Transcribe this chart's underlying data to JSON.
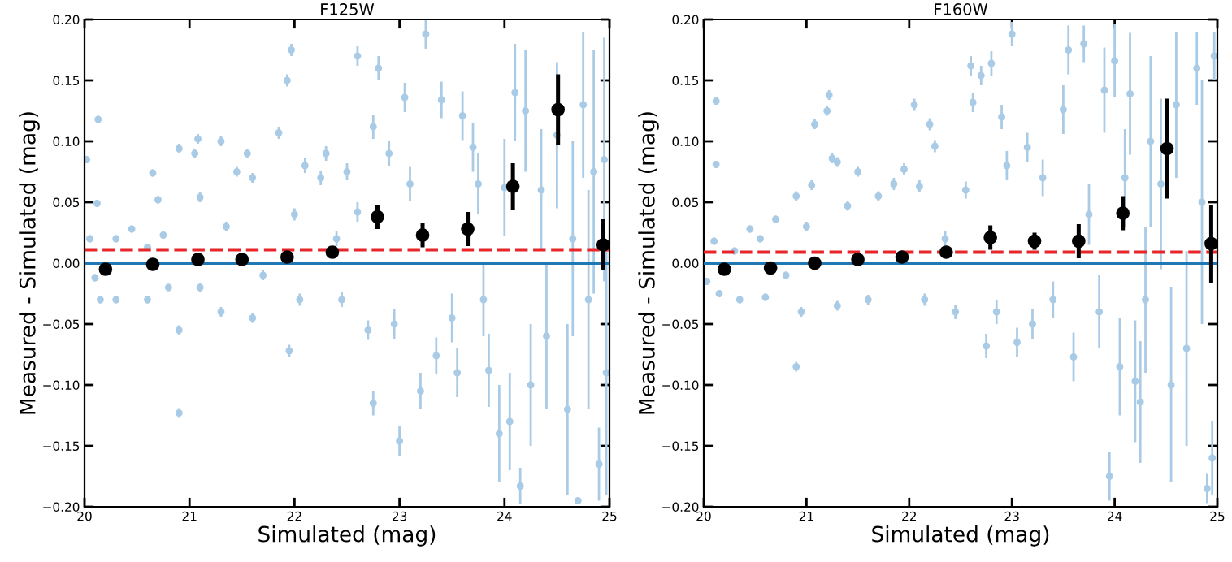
{
  "chart_data": [
    {
      "type": "scatter",
      "title": "F125W",
      "xlabel": "Simulated (mag)",
      "ylabel": "Measured - Simulated (mag)",
      "xlim": [
        20,
        25
      ],
      "xticks": [
        20,
        21,
        22,
        23,
        24,
        25
      ],
      "ylim": [
        -0.2,
        0.2
      ],
      "yticks": [
        {
          "value": -0.2,
          "label": "−0.20"
        },
        {
          "value": -0.15,
          "label": "−0.15"
        },
        {
          "value": -0.1,
          "label": "−0.10"
        },
        {
          "value": -0.05,
          "label": "−0.05"
        },
        {
          "value": 0,
          "label": "0.00"
        },
        {
          "value": 0.05,
          "label": "0.05"
        },
        {
          "value": 0.1,
          "label": "0.10"
        },
        {
          "value": 0.15,
          "label": "0.15"
        },
        {
          "value": 0.2,
          "label": "0.20"
        }
      ],
      "grid": false,
      "marker": "circle",
      "ref_lines": [
        {
          "axis": "y",
          "value": 0,
          "color": "#1f77b4",
          "line_style": "solid"
        },
        {
          "axis": "y",
          "value": 0.011,
          "color": "#e8262a",
          "line_style": "dashed"
        }
      ],
      "series": [
        {
          "color": "#a9cbe6",
          "x": [
            20.02,
            20.05,
            20.13,
            20.12,
            20.1,
            20.15,
            20.3,
            20.3,
            20.45,
            20.6,
            20.6,
            20.65,
            20.7,
            20.75,
            20.8,
            20.9,
            20.9,
            20.9,
            21.05,
            21.08,
            21.1,
            21.1,
            21.3,
            21.3,
            21.35,
            21.45,
            21.55,
            21.6,
            21.6,
            21.7,
            21.85,
            21.93,
            21.97,
            21.95,
            22.0,
            22.05,
            22.1,
            22.25,
            22.3,
            22.4,
            22.45,
            22.5,
            22.6,
            22.6,
            22.7,
            22.75,
            22.75,
            22.8,
            22.9,
            22.95,
            23.0,
            23.05,
            23.1,
            23.2,
            23.25,
            23.35,
            23.4,
            23.5,
            23.55,
            23.6,
            23.7,
            23.75,
            23.8,
            23.85,
            23.95,
            24.0,
            24.05,
            24.1,
            24.15,
            24.2,
            24.25,
            24.35,
            24.4,
            24.5,
            24.6,
            24.65,
            24.7,
            24.75,
            24.8,
            24.85,
            24.9,
            24.95,
            24.97
          ],
          "values": [
            0.085,
            0.02,
            0.118,
            0.049,
            -0.012,
            -0.03,
            0.02,
            -0.03,
            0.028,
            0.013,
            -0.03,
            0.074,
            0.052,
            0.023,
            -0.02,
            0.094,
            -0.055,
            -0.123,
            0.09,
            0.102,
            0.054,
            -0.02,
            0.1,
            -0.04,
            0.03,
            0.075,
            0.09,
            0.07,
            -0.045,
            -0.01,
            0.107,
            0.15,
            0.175,
            -0.072,
            0.04,
            -0.03,
            0.08,
            0.07,
            0.09,
            0.02,
            -0.03,
            0.075,
            0.17,
            0.042,
            -0.055,
            0.112,
            -0.115,
            0.16,
            0.09,
            -0.05,
            -0.146,
            0.136,
            0.065,
            -0.105,
            0.188,
            -0.076,
            0.134,
            -0.045,
            -0.09,
            0.121,
            0.095,
            0.065,
            -0.03,
            -0.088,
            -0.14,
            0.062,
            -0.13,
            0.14,
            -0.183,
            0.125,
            -0.1,
            0.06,
            -0.06,
            0.105,
            -0.12,
            0.02,
            -0.195,
            0.13,
            -0.03,
            0.075,
            -0.165,
            0.085,
            -0.09
          ],
          "errors": [
            0.003,
            0.003,
            0.003,
            0.003,
            0.003,
            0.003,
            0.003,
            0.003,
            0.003,
            0.003,
            0.003,
            0.003,
            0.003,
            0.003,
            0.003,
            0.004,
            0.004,
            0.004,
            0.004,
            0.004,
            0.004,
            0.004,
            0.004,
            0.004,
            0.004,
            0.004,
            0.004,
            0.004,
            0.004,
            0.004,
            0.005,
            0.005,
            0.005,
            0.005,
            0.005,
            0.005,
            0.006,
            0.006,
            0.006,
            0.006,
            0.006,
            0.007,
            0.008,
            0.008,
            0.008,
            0.01,
            0.01,
            0.01,
            0.01,
            0.012,
            0.012,
            0.012,
            0.014,
            0.015,
            0.012,
            0.015,
            0.015,
            0.02,
            0.02,
            0.02,
            0.02,
            0.025,
            0.03,
            0.03,
            0.04,
            0.04,
            0.04,
            0.04,
            0.015,
            0.05,
            0.05,
            0.05,
            0.06,
            0.06,
            0.07,
            0.08,
            null,
            0.06,
            0.09,
            0.1,
            0.03,
            0.1,
            0.1
          ]
        },
        {
          "color": "#000000",
          "x": [
            20.2,
            20.65,
            21.08,
            21.5,
            21.93,
            22.36,
            22.79,
            23.22,
            23.65,
            24.08,
            24.51,
            24.94
          ],
          "values": [
            -0.005,
            -0.001,
            0.003,
            0.003,
            0.005,
            0.009,
            0.038,
            0.023,
            0.028,
            0.063,
            0.126,
            0.015
          ],
          "errors": [
            0.002,
            0.002,
            0.002,
            0.002,
            0.003,
            0.003,
            0.01,
            0.01,
            0.014,
            0.019,
            0.029,
            0.021
          ]
        }
      ]
    },
    {
      "type": "scatter",
      "title": "F160W",
      "xlabel": "Simulated (mag)",
      "ylabel": "Measured - Simulated (mag)",
      "xlim": [
        20,
        25
      ],
      "xticks": [
        20,
        21,
        22,
        23,
        24,
        25
      ],
      "ylim": [
        -0.2,
        0.2
      ],
      "yticks": [
        {
          "value": -0.2,
          "label": "−0.20"
        },
        {
          "value": -0.15,
          "label": "−0.15"
        },
        {
          "value": -0.1,
          "label": "−0.10"
        },
        {
          "value": -0.05,
          "label": "−0.05"
        },
        {
          "value": 0,
          "label": "0.00"
        },
        {
          "value": 0.05,
          "label": "0.05"
        },
        {
          "value": 0.1,
          "label": "0.10"
        },
        {
          "value": 0.15,
          "label": "0.15"
        },
        {
          "value": 0.2,
          "label": "0.20"
        }
      ],
      "grid": false,
      "marker": "circle",
      "ref_lines": [
        {
          "axis": "y",
          "value": 0,
          "color": "#1f77b4",
          "line_style": "solid"
        },
        {
          "axis": "y",
          "value": 0.009,
          "color": "#e8262a",
          "line_style": "dashed"
        }
      ],
      "series": [
        {
          "color": "#a9cbe6",
          "x": [
            20.03,
            20.1,
            20.12,
            20.12,
            20.15,
            20.3,
            20.35,
            20.45,
            20.55,
            20.6,
            20.7,
            20.8,
            20.9,
            20.9,
            20.95,
            21.0,
            21.05,
            21.08,
            21.2,
            21.22,
            21.25,
            21.3,
            21.3,
            21.4,
            21.5,
            21.6,
            21.7,
            21.85,
            21.95,
            22.05,
            22.1,
            22.15,
            22.2,
            22.25,
            22.35,
            22.45,
            22.55,
            22.6,
            22.62,
            22.7,
            22.75,
            22.8,
            22.85,
            22.9,
            22.95,
            23.0,
            23.05,
            23.15,
            23.2,
            23.3,
            23.4,
            23.5,
            23.55,
            23.6,
            23.7,
            23.75,
            23.85,
            23.9,
            23.95,
            24.0,
            24.05,
            24.1,
            24.15,
            24.2,
            24.25,
            24.3,
            24.35,
            24.45,
            24.55,
            24.6,
            24.7,
            24.8,
            24.85,
            24.9,
            24.95,
            24.97
          ],
          "values": [
            -0.015,
            0.018,
            0.133,
            0.081,
            -0.025,
            0.01,
            -0.03,
            0.028,
            0.02,
            -0.028,
            0.036,
            -0.01,
            0.055,
            -0.085,
            -0.04,
            0.03,
            0.064,
            0.114,
            0.125,
            0.138,
            0.086,
            0.083,
            -0.035,
            0.047,
            0.075,
            -0.03,
            0.055,
            0.065,
            0.077,
            0.13,
            0.063,
            -0.03,
            0.114,
            0.096,
            0.02,
            -0.04,
            0.06,
            0.162,
            0.132,
            0.154,
            -0.068,
            0.164,
            -0.04,
            0.12,
            0.08,
            0.188,
            -0.065,
            0.095,
            -0.05,
            0.07,
            -0.03,
            0.126,
            0.175,
            -0.077,
            0.18,
            0.04,
            -0.04,
            0.142,
            -0.175,
            0.166,
            -0.085,
            0.07,
            0.139,
            -0.097,
            -0.114,
            -0.03,
            0.1,
            0.065,
            -0.1,
            0.13,
            -0.07,
            0.16,
            0.05,
            -0.185,
            -0.16,
            0.17
          ],
          "errors": [
            0.003,
            0.003,
            0.003,
            0.003,
            0.003,
            0.003,
            0.003,
            0.003,
            0.003,
            0.003,
            0.003,
            0.003,
            0.004,
            0.004,
            0.004,
            0.004,
            0.004,
            0.004,
            0.004,
            0.004,
            0.004,
            0.004,
            0.004,
            0.004,
            0.004,
            0.004,
            0.004,
            0.005,
            0.005,
            0.005,
            0.005,
            0.005,
            0.005,
            0.005,
            0.006,
            0.006,
            0.007,
            0.008,
            0.008,
            0.008,
            0.01,
            0.01,
            0.01,
            0.01,
            0.012,
            0.01,
            0.012,
            0.012,
            0.012,
            0.015,
            0.015,
            0.02,
            0.02,
            0.02,
            0.015,
            0.025,
            0.03,
            0.035,
            0.02,
            0.03,
            0.04,
            0.04,
            0.05,
            0.05,
            0.05,
            0.06,
            0.07,
            0.07,
            0.08,
            0.06,
            0.08,
            0.03,
            0.1,
            0.012,
            0.03,
            0.02
          ]
        },
        {
          "color": "#000000",
          "x": [
            20.2,
            20.65,
            21.08,
            21.5,
            21.93,
            22.36,
            22.79,
            23.22,
            23.65,
            24.08,
            24.51,
            24.94
          ],
          "values": [
            -0.005,
            -0.004,
            0.0,
            0.003,
            0.005,
            0.009,
            0.021,
            0.018,
            0.018,
            0.041,
            0.094,
            0.016
          ],
          "errors": [
            0.002,
            0.002,
            0.002,
            0.002,
            0.003,
            0.003,
            0.01,
            0.007,
            0.014,
            0.014,
            0.041,
            0.032
          ]
        }
      ]
    }
  ]
}
